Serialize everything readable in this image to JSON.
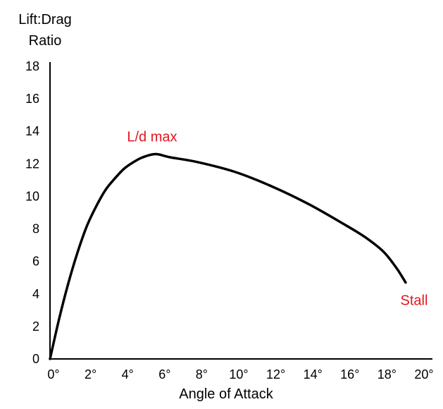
{
  "chart_data": {
    "type": "line",
    "ylabel_lines": [
      "Lift:Drag",
      "Ratio"
    ],
    "xlabel": "Angle of Attack",
    "xlim": [
      0,
      20
    ],
    "ylim": [
      0,
      18
    ],
    "x_ticks": [
      0,
      2,
      4,
      6,
      8,
      10,
      12,
      14,
      16,
      18,
      20
    ],
    "x_tick_labels": [
      "0°",
      "2°",
      "4°",
      "6°",
      "8°",
      "10°",
      "12°",
      "14°",
      "16°",
      "18°",
      "20°"
    ],
    "y_ticks": [
      0,
      2,
      4,
      6,
      8,
      10,
      12,
      14,
      16,
      18
    ],
    "y_tick_labels": [
      "0",
      "2",
      "4",
      "6",
      "8",
      "10",
      "12",
      "14",
      "16",
      "18"
    ],
    "grid": false,
    "series": [
      {
        "color": "#000000",
        "points": [
          [
            0,
            0
          ],
          [
            0.5,
            2.5
          ],
          [
            1,
            4.7
          ],
          [
            1.5,
            6.6
          ],
          [
            2,
            8.2
          ],
          [
            2.5,
            9.4
          ],
          [
            3,
            10.4
          ],
          [
            3.5,
            11.1
          ],
          [
            4,
            11.7
          ],
          [
            4.5,
            12.1
          ],
          [
            5,
            12.4
          ],
          [
            5.7,
            12.6
          ],
          [
            6.5,
            12.4
          ],
          [
            8,
            12.1
          ],
          [
            10,
            11.5
          ],
          [
            12,
            10.6
          ],
          [
            14,
            9.5
          ],
          [
            16,
            8.2
          ],
          [
            17,
            7.5
          ],
          [
            18,
            6.6
          ],
          [
            18.7,
            5.6
          ],
          [
            19.2,
            4.7
          ]
        ]
      }
    ],
    "annotations": [
      {
        "text": "L/d max",
        "color": "#e3161c",
        "anchor_x": 5.7,
        "anchor_y": 12.6,
        "placement": "above"
      },
      {
        "text": "Stall",
        "color": "#e3161c",
        "anchor_x": 19.2,
        "anchor_y": 4.7,
        "placement": "below-right"
      }
    ]
  }
}
